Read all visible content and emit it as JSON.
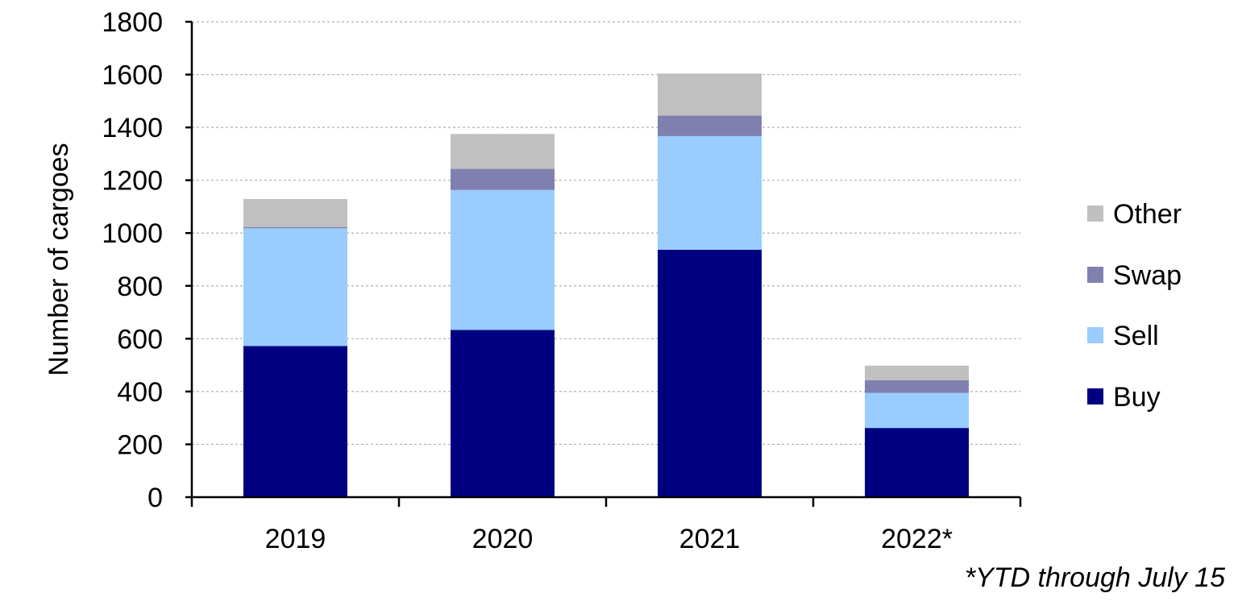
{
  "chart_data": {
    "type": "bar",
    "stacked": true,
    "categories": [
      "2019",
      "2020",
      "2021",
      "2022*"
    ],
    "series": [
      {
        "name": "Buy",
        "color": "#000080",
        "values": [
          572,
          633,
          937,
          262
        ]
      },
      {
        "name": "Sell",
        "color": "#99ccff",
        "values": [
          446,
          530,
          430,
          133
        ]
      },
      {
        "name": "Swap",
        "color": "#8080b0",
        "values": [
          5,
          80,
          78,
          48
        ]
      },
      {
        "name": "Other",
        "color": "#c0c0c0",
        "values": [
          106,
          132,
          159,
          55
        ]
      }
    ],
    "ylabel": "Number of cargoes",
    "xlabel": "",
    "ylim": [
      0,
      1800
    ],
    "yticks": [
      "0",
      "200",
      "400",
      "600",
      "800",
      "1000",
      "1200",
      "1400",
      "1600",
      "1800"
    ],
    "grid": true,
    "legend_position": "right",
    "legend_order": [
      "Other",
      "Swap",
      "Sell",
      "Buy"
    ],
    "footnote": "*YTD through July 15"
  }
}
